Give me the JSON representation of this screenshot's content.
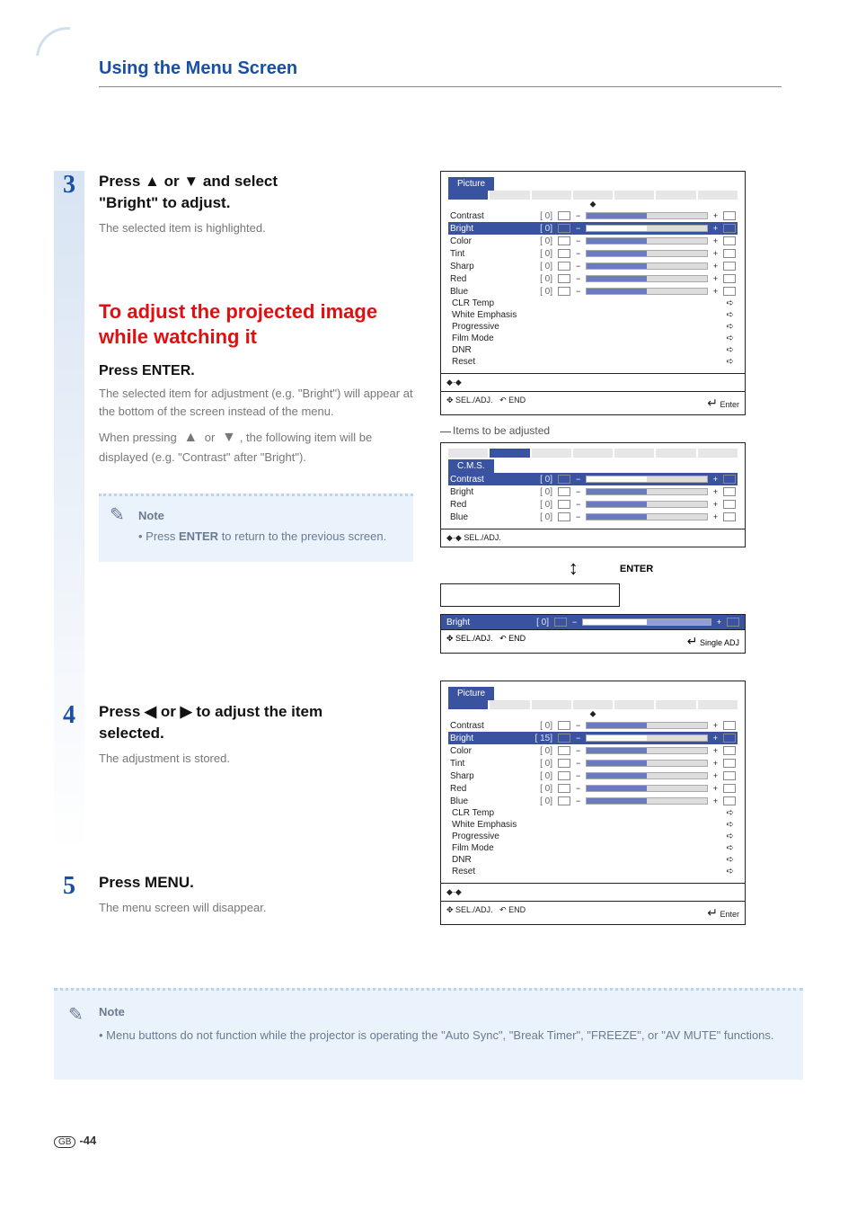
{
  "header": {
    "title": "Using the Menu Screen"
  },
  "steps": {
    "s3": {
      "num": "3",
      "line1a": "Press ",
      "line1b": " or ",
      "line1c": " and select",
      "line2": "\"Bright\" to adjust.",
      "grey": "The selected item is highlighted.",
      "red_heading": "To adjust the projected image while watching it",
      "press_enter_a": "Press ",
      "press_enter_b": "ENTER",
      "press_enter_c": ".",
      "grey2a": "The selected item for adjustment (e.g. \"Bright\") will appear at the bottom of the screen instead of the menu.",
      "grey2b": "When pressing ",
      "grey2c": " or ",
      "grey2d": ", the following item will be displayed (e.g. \"Contrast\" after \"Bright\").",
      "note_title": "Note",
      "note_a": "Press ",
      "note_b": "ENTER",
      "note_c": " to return to the previous screen."
    },
    "s4": {
      "num": "4",
      "line1a": "Press ",
      "line1b": " or ",
      "line1c": " to adjust the item",
      "line2": "selected.",
      "grey": "The adjustment is stored."
    },
    "s5": {
      "num": "5",
      "line1a": "Press ",
      "line1b": "MENU",
      "line1c": ".",
      "grey": "The menu screen will disappear."
    }
  },
  "osd": {
    "panel1": {
      "tab": "Picture",
      "rows": [
        {
          "label": "Contrast",
          "val": "[   0]"
        },
        {
          "label": "Bright",
          "val": "[   0]",
          "sel": true
        },
        {
          "label": "Color",
          "val": "[   0]"
        },
        {
          "label": "Tint",
          "val": "[   0]"
        },
        {
          "label": "Sharp",
          "val": "[   0]"
        },
        {
          "label": "Red",
          "val": "[   0]"
        },
        {
          "label": "Blue",
          "val": "[   0]"
        }
      ],
      "list": [
        "CLR Temp",
        "White Emphasis",
        "Progressive",
        "Film Mode",
        "DNR",
        "Reset"
      ],
      "statusL": "SEL./ADJ.",
      "statusR": "Enter",
      "statusEnd": "END"
    },
    "items_label": "Items to be adjusted",
    "panel2": {
      "tab": "C.M.S.",
      "rows": [
        {
          "label": "Contrast",
          "val": "[   0]",
          "sel": true
        },
        {
          "label": "Bright",
          "val": "[   0]"
        },
        {
          "label": "Red",
          "val": "[   0]"
        },
        {
          "label": "Blue",
          "val": "[   0]"
        }
      ],
      "statusL": "SEL./ADJ."
    },
    "arrow_enter": "ENTER",
    "single_row": {
      "label": "Bright",
      "val": "[   0]"
    },
    "single_status": {
      "L": "SEL./ADJ.",
      "R": "Single ADJ",
      "End": "END"
    },
    "panel3": {
      "tab": "Picture",
      "rows": [
        {
          "label": "Contrast",
          "val": "[   0]"
        },
        {
          "label": "Bright",
          "val": "[  15]",
          "sel": true
        },
        {
          "label": "Color",
          "val": "[   0]"
        },
        {
          "label": "Tint",
          "val": "[   0]"
        },
        {
          "label": "Sharp",
          "val": "[   0]"
        },
        {
          "label": "Red",
          "val": "[   0]"
        },
        {
          "label": "Blue",
          "val": "[   0]"
        }
      ],
      "list": [
        "CLR Temp",
        "White Emphasis",
        "Progressive",
        "Film Mode",
        "DNR",
        "Reset"
      ],
      "statusL": "SEL./ADJ.",
      "statusR": "Enter",
      "statusEnd": "END"
    }
  },
  "wide_note": {
    "title": "Note",
    "body": "Menu buttons do not function while the projector is operating the \"Auto Sync\", \"Break Timer\", \"FREEZE\", or \"AV MUTE\" functions."
  },
  "footer": {
    "region": "GB",
    "page": "-44"
  },
  "colors": {
    "brand_blue": "#1a4fa3",
    "red": "#d11",
    "note_bg": "#eaf2fb",
    "note_text": "#6a7b90",
    "osd_blue": "#3a53a0"
  }
}
